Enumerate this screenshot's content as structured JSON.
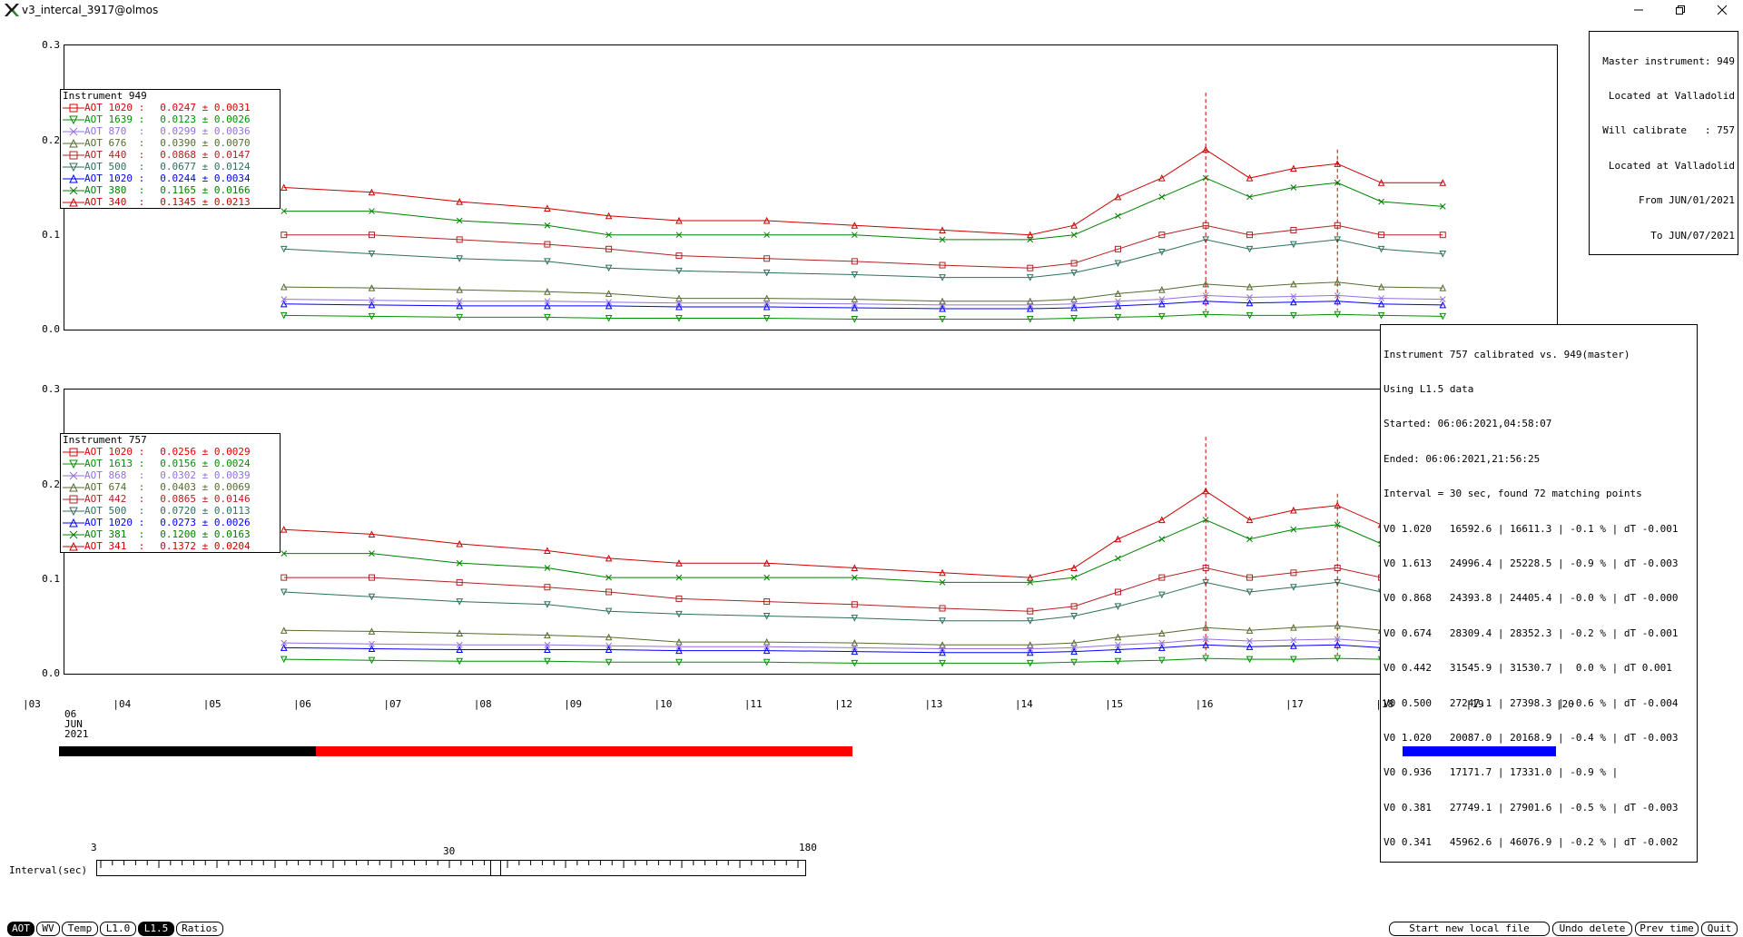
{
  "window": {
    "title": "v3_intercal_3917@olmos"
  },
  "info_master": [
    "Master instrument: 949",
    " Located at Valladolid",
    "Will calibrate   : 757",
    " Located at Valladolid",
    "       From JUN/01/2021",
    "         To JUN/07/2021"
  ],
  "plots": [
    {
      "legend_title": "Instrument 949",
      "legend": [
        {
          "name": "AOT 1020 :",
          "value": "0.0247 ± 0.0031",
          "color": "#e00000",
          "marker": "square"
        },
        {
          "name": "AOT 1639 :",
          "value": "0.0123 ± 0.0026",
          "color": "#009000",
          "marker": "tri-down"
        },
        {
          "name": "AOT 870  :",
          "value": "0.0299 ± 0.0036",
          "color": "#9370db",
          "marker": "x"
        },
        {
          "name": "AOT 676  :",
          "value": "0.0390 ± 0.0070",
          "color": "#556b2f",
          "marker": "tri-up"
        },
        {
          "name": "AOT 440  :",
          "value": "0.0868 ± 0.0147",
          "color": "#b22222",
          "marker": "square"
        },
        {
          "name": "AOT 500  :",
          "value": "0.0677 ± 0.0124",
          "color": "#2f6f5f",
          "marker": "tri-down"
        },
        {
          "name": "AOT 1020 :",
          "value": "0.0244 ± 0.0034",
          "color": "#0000ff",
          "marker": "tri-up"
        },
        {
          "name": "AOT 380  :",
          "value": "0.1165 ± 0.0166",
          "color": "#008000",
          "marker": "x"
        },
        {
          "name": "AOT 340  :",
          "value": "0.1345 ± 0.0213",
          "color": "#cc0000",
          "marker": "tri-up"
        }
      ]
    },
    {
      "legend_title": "Instrument 757",
      "legend": [
        {
          "name": "AOT 1020 :",
          "value": "0.0256 ± 0.0029",
          "color": "#e00000",
          "marker": "square"
        },
        {
          "name": "AOT 1613 :",
          "value": "0.0156 ± 0.0024",
          "color": "#009000",
          "marker": "tri-down"
        },
        {
          "name": "AOT 868  :",
          "value": "0.0302 ± 0.0039",
          "color": "#9370db",
          "marker": "x"
        },
        {
          "name": "AOT 674  :",
          "value": "0.0403 ± 0.0069",
          "color": "#556b2f",
          "marker": "tri-up"
        },
        {
          "name": "AOT 442  :",
          "value": "0.0865 ± 0.0146",
          "color": "#b22222",
          "marker": "square"
        },
        {
          "name": "AOT 500  :",
          "value": "0.0720 ± 0.0113",
          "color": "#2f6f5f",
          "marker": "tri-down"
        },
        {
          "name": "AOT 1020 :",
          "value": "0.0273 ± 0.0026",
          "color": "#0000ff",
          "marker": "tri-up"
        },
        {
          "name": "AOT 381  :",
          "value": "0.1200 ± 0.0163",
          "color": "#008000",
          "marker": "x"
        },
        {
          "name": "AOT 341  :",
          "value": "0.1372 ± 0.0204",
          "color": "#cc0000",
          "marker": "tri-up"
        }
      ]
    }
  ],
  "calib_box": [
    "Instrument 757 calibrated vs. 949(master)",
    "Using L1.5 data",
    "Started: 06:06:2021,04:58:07",
    "Ended: 06:06:2021,21:56:25",
    "Interval = 30 sec, found 72 matching points",
    "V0 1.020   16592.6 | 16611.3 | -0.1 % | dT -0.001",
    "V0 1.613   24996.4 | 25228.5 | -0.9 % | dT -0.003",
    "V0 0.868   24393.8 | 24405.4 | -0.0 % | dT -0.000",
    "V0 0.674   28309.4 | 28352.3 | -0.2 % | dT -0.001",
    "V0 0.442   31545.9 | 31530.7 |  0.0 % | dT 0.001",
    "V0 0.500   27247.1 | 27398.3 | -0.6 % | dT -0.004",
    "V0 1.020   20087.0 | 20168.9 | -0.4 % | dT -0.003",
    "V0 0.936   17171.7 | 17331.0 | -0.9 % |",
    "V0 0.381   27749.1 | 27901.6 | -0.5 % | dT -0.003",
    "V0 0.341   45962.6 | 46076.9 | -0.2 % | dT -0.002"
  ],
  "axis": {
    "yticks": [
      "0.3",
      "0.2",
      "0.1",
      "0.0"
    ],
    "xticks": [
      "|03",
      "|04",
      "|05",
      "|06",
      "|07",
      "|08",
      "|09",
      "|10",
      "|11",
      "|12",
      "|13",
      "|14",
      "|15",
      "|16",
      "|17",
      "|18",
      "|19",
      "|20"
    ],
    "date": [
      "06",
      "JUN",
      "2021"
    ]
  },
  "chart_data": {
    "type": "scatter",
    "x_unit": "hour of day, 06 JUN 2021",
    "xlim": [
      3,
      20
    ],
    "ylim": [
      0,
      0.3
    ],
    "x": [
      5.5,
      6.5,
      7.5,
      8.5,
      9.2,
      10,
      11,
      12,
      13,
      14,
      14.5,
      15,
      15.5,
      16,
      16.5,
      17,
      17.5,
      18,
      18.7
    ],
    "series": [
      {
        "name": "AOT 340",
        "color": "#cc0000",
        "values": [
          0.15,
          0.145,
          0.135,
          0.128,
          0.12,
          0.115,
          0.115,
          0.11,
          0.105,
          0.1,
          0.11,
          0.14,
          0.16,
          0.19,
          0.16,
          0.17,
          0.175,
          0.155,
          0.155
        ]
      },
      {
        "name": "AOT 380",
        "color": "#008000",
        "values": [
          0.125,
          0.125,
          0.115,
          0.11,
          0.1,
          0.1,
          0.1,
          0.1,
          0.095,
          0.095,
          0.1,
          0.12,
          0.14,
          0.16,
          0.14,
          0.15,
          0.155,
          0.135,
          0.13
        ]
      },
      {
        "name": "AOT 440",
        "color": "#b22222",
        "values": [
          0.1,
          0.1,
          0.095,
          0.09,
          0.085,
          0.078,
          0.075,
          0.072,
          0.068,
          0.065,
          0.07,
          0.085,
          0.1,
          0.11,
          0.1,
          0.105,
          0.11,
          0.1,
          0.1
        ]
      },
      {
        "name": "AOT 500",
        "color": "#2f6f5f",
        "values": [
          0.085,
          0.08,
          0.075,
          0.072,
          0.065,
          0.062,
          0.06,
          0.058,
          0.055,
          0.055,
          0.06,
          0.07,
          0.082,
          0.095,
          0.085,
          0.09,
          0.095,
          0.085,
          0.08
        ]
      },
      {
        "name": "AOT 676",
        "color": "#556b2f",
        "values": [
          0.045,
          0.044,
          0.042,
          0.04,
          0.038,
          0.033,
          0.033,
          0.032,
          0.03,
          0.03,
          0.032,
          0.038,
          0.042,
          0.048,
          0.045,
          0.048,
          0.05,
          0.045,
          0.044
        ]
      },
      {
        "name": "AOT 870",
        "color": "#9370db",
        "values": [
          0.032,
          0.031,
          0.03,
          0.03,
          0.029,
          0.028,
          0.028,
          0.027,
          0.026,
          0.026,
          0.027,
          0.03,
          0.032,
          0.036,
          0.034,
          0.035,
          0.036,
          0.033,
          0.032
        ]
      },
      {
        "name": "AOT 1020",
        "color": "#0000ff",
        "values": [
          0.027,
          0.026,
          0.025,
          0.025,
          0.025,
          0.024,
          0.024,
          0.023,
          0.022,
          0.022,
          0.023,
          0.025,
          0.027,
          0.03,
          0.028,
          0.029,
          0.03,
          0.027,
          0.026
        ]
      },
      {
        "name": "AOT 1639",
        "color": "#009000",
        "values": [
          0.015,
          0.014,
          0.013,
          0.013,
          0.012,
          0.012,
          0.012,
          0.011,
          0.011,
          0.011,
          0.012,
          0.013,
          0.014,
          0.016,
          0.015,
          0.015,
          0.016,
          0.015,
          0.014
        ]
      }
    ]
  },
  "timeline_bars": [
    {
      "start": 3.4,
      "end": 6.25,
      "color": "#000000"
    },
    {
      "start": 6.25,
      "end": 12.2,
      "color": "#ff0000"
    },
    {
      "start": 18.3,
      "end": 20.0,
      "color": "#0000ff"
    }
  ],
  "slider": {
    "label": "Interval(sec)",
    "min": "3",
    "mid": "30",
    "max": "180",
    "value": 30
  },
  "buttons_left": [
    "AOT",
    "WV",
    "Temp",
    "L1.0",
    "L1.5",
    "Ratios"
  ],
  "buttons_right": [
    "Start new local file",
    "Undo delete",
    "Prev time",
    "Quit"
  ],
  "active_buttons": [
    "AOT",
    "L1.5"
  ]
}
